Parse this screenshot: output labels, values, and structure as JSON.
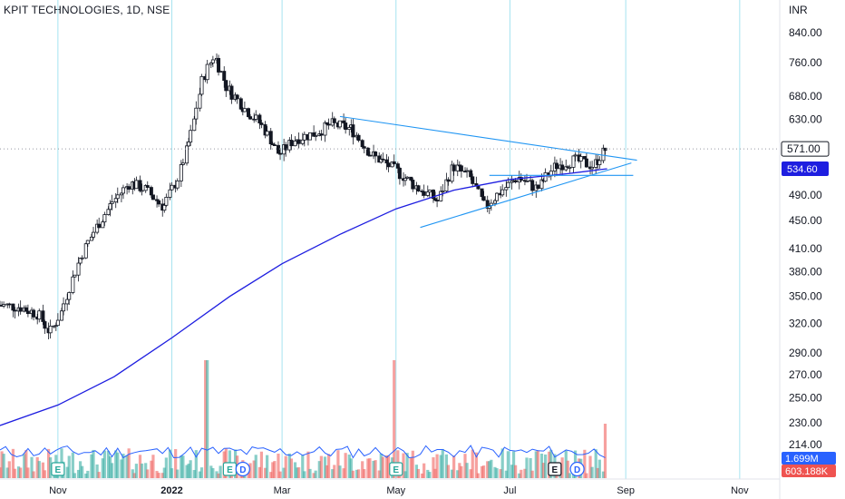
{
  "header": {
    "title": "KPIT TECHNOLOGIES, 1D, NSE"
  },
  "chart_data": {
    "type": "candlestick",
    "symbol": "KPIT TECHNOLOGIES",
    "interval": "1D",
    "exchange": "NSE",
    "currency": "INR",
    "y_scale": "log",
    "ylim": [
      200,
      880
    ],
    "y_ticks": [
      "840.00",
      "760.00",
      "680.00",
      "630.00",
      "571.00",
      "534.60",
      "490.00",
      "450.00",
      "410.00",
      "380.00",
      "350.00",
      "320.00",
      "290.00",
      "270.00",
      "250.00",
      "230.00",
      "214.00",
      "1.699M",
      "603.188K"
    ],
    "y_axis_label": "INR",
    "x_tick_labels": [
      {
        "label": "Nov",
        "date": "2021-11-01"
      },
      {
        "label": "2022",
        "date": "2022-01-01",
        "bold": true
      },
      {
        "label": "Mar",
        "date": "2022-03-01"
      },
      {
        "label": "May",
        "date": "2022-05-01"
      },
      {
        "label": "Jul",
        "date": "2022-07-01"
      },
      {
        "label": "Sep",
        "date": "2022-09-01"
      },
      {
        "label": "Nov",
        "date": "2022-11-01"
      }
    ],
    "last_price": {
      "label": "571.00",
      "value": 571.0,
      "color": "#ffffff",
      "border": "#131722"
    },
    "ma_price": {
      "label": "534.60",
      "value": 534.6,
      "color": "#1e1ee0"
    },
    "volume_labels": [
      {
        "label": "1.699M",
        "color": "#2962ff"
      },
      {
        "label": "603.188K",
        "color": "#ef5350"
      }
    ],
    "price_path": [
      {
        "date": "2021-10-01",
        "close": 340
      },
      {
        "date": "2021-10-12",
        "close": 338
      },
      {
        "date": "2021-10-22",
        "close": 330
      },
      {
        "date": "2021-10-28",
        "close": 310
      },
      {
        "date": "2021-11-03",
        "close": 330
      },
      {
        "date": "2021-11-12",
        "close": 390
      },
      {
        "date": "2021-11-22",
        "close": 440
      },
      {
        "date": "2021-12-01",
        "close": 480
      },
      {
        "date": "2021-12-10",
        "close": 510
      },
      {
        "date": "2021-12-18",
        "close": 500
      },
      {
        "date": "2021-12-28",
        "close": 470
      },
      {
        "date": "2022-01-05",
        "close": 520
      },
      {
        "date": "2022-01-12",
        "close": 600
      },
      {
        "date": "2022-01-18",
        "close": 720
      },
      {
        "date": "2022-01-24",
        "close": 780
      },
      {
        "date": "2022-01-31",
        "close": 700
      },
      {
        "date": "2022-02-08",
        "close": 660
      },
      {
        "date": "2022-02-18",
        "close": 620
      },
      {
        "date": "2022-02-28",
        "close": 560
      },
      {
        "date": "2022-03-08",
        "close": 590
      },
      {
        "date": "2022-03-18",
        "close": 600
      },
      {
        "date": "2022-03-28",
        "close": 620
      },
      {
        "date": "2022-04-08",
        "close": 610
      },
      {
        "date": "2022-04-18",
        "close": 560
      },
      {
        "date": "2022-04-28",
        "close": 540
      },
      {
        "date": "2022-05-06",
        "close": 520
      },
      {
        "date": "2022-05-14",
        "close": 500
      },
      {
        "date": "2022-05-24",
        "close": 480
      },
      {
        "date": "2022-06-01",
        "close": 540
      },
      {
        "date": "2022-06-10",
        "close": 520
      },
      {
        "date": "2022-06-18",
        "close": 470
      },
      {
        "date": "2022-06-28",
        "close": 500
      },
      {
        "date": "2022-07-06",
        "close": 520
      },
      {
        "date": "2022-07-16",
        "close": 500
      },
      {
        "date": "2022-07-26",
        "close": 540
      },
      {
        "date": "2022-08-05",
        "close": 550
      },
      {
        "date": "2022-08-15",
        "close": 540
      },
      {
        "date": "2022-08-22",
        "close": 571
      }
    ],
    "ma_path": [
      {
        "date": "2021-10-01",
        "value": 228
      },
      {
        "date": "2021-11-01",
        "value": 244
      },
      {
        "date": "2021-12-01",
        "value": 268
      },
      {
        "date": "2022-01-01",
        "value": 305
      },
      {
        "date": "2022-02-01",
        "value": 350
      },
      {
        "date": "2022-03-01",
        "value": 390
      },
      {
        "date": "2022-04-01",
        "value": 430
      },
      {
        "date": "2022-05-01",
        "value": 468
      },
      {
        "date": "2022-06-01",
        "value": 498
      },
      {
        "date": "2022-07-01",
        "value": 516
      },
      {
        "date": "2022-08-01",
        "value": 526
      },
      {
        "date": "2022-08-22",
        "value": 534.6
      }
    ],
    "trendlines": [
      {
        "name": "upper",
        "from": {
          "date": "2022-04-01",
          "value": 636
        },
        "to": {
          "date": "2022-09-07",
          "value": 550
        }
      },
      {
        "name": "lower",
        "from": {
          "date": "2022-05-14",
          "value": 440
        },
        "to": {
          "date": "2022-09-04",
          "value": 545
        }
      },
      {
        "name": "horizontal",
        "from": {
          "date": "2022-06-20",
          "value": 523
        },
        "to": {
          "date": "2022-09-05",
          "value": 523
        }
      }
    ],
    "volume": {
      "ma_color": "#2962ff",
      "up_color": "#26a69a",
      "down_color": "#ef5350",
      "spikes": [
        {
          "date": "2022-01-20",
          "ratio": 1.0
        },
        {
          "date": "2022-05-01",
          "ratio": 1.0
        },
        {
          "date": "2022-08-22",
          "ratio": 0.5
        }
      ]
    },
    "events": [
      {
        "symbol": "E",
        "date": "2021-11-01",
        "type": "earnings"
      },
      {
        "symbol": "E",
        "date": "2022-02-01",
        "type": "earnings"
      },
      {
        "symbol": "D",
        "date": "2022-02-08",
        "type": "dividend"
      },
      {
        "symbol": "E",
        "date": "2022-05-01",
        "type": "earnings"
      },
      {
        "symbol": "E",
        "date": "2022-07-25",
        "type": "earnings"
      },
      {
        "symbol": "D",
        "date": "2022-08-06",
        "type": "dividend"
      }
    ]
  }
}
